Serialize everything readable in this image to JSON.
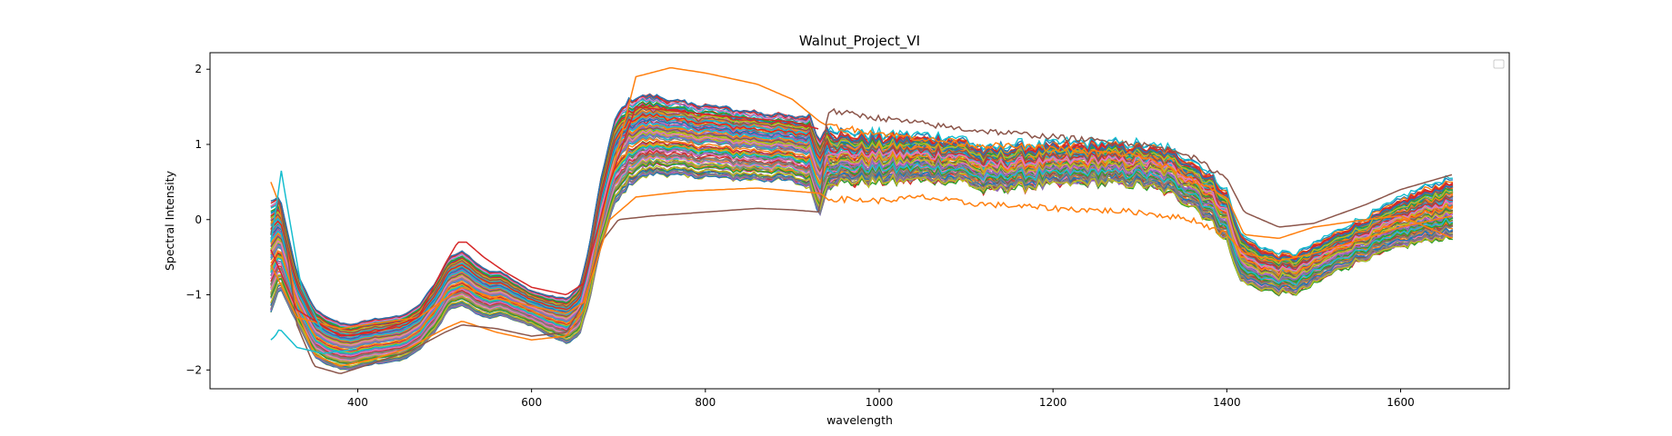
{
  "chart_data": {
    "type": "line",
    "title": "Walnut_Project_VI",
    "xlabel": "wavelength",
    "ylabel": "Spectral Intensity",
    "xlim": [
      230,
      1725
    ],
    "ylim": [
      -2.25,
      2.22
    ],
    "xticks": [
      400,
      600,
      800,
      1000,
      1200,
      1400,
      1600
    ],
    "yticks": [
      -2,
      -1,
      0,
      1,
      2
    ],
    "grid": false,
    "legend": "upper right (empty)",
    "series_count": 120,
    "palette": [
      "#1f77b4",
      "#ff7f0e",
      "#2ca02c",
      "#d62728",
      "#9467bd",
      "#8c564b",
      "#e377c2",
      "#7f7f7f",
      "#bcbd22",
      "#17becf"
    ],
    "mean_spectrum": {
      "x": [
        300,
        310,
        330,
        350,
        370,
        390,
        420,
        450,
        470,
        490,
        505,
        520,
        535,
        550,
        565,
        580,
        600,
        620,
        640,
        655,
        665,
        680,
        695,
        710,
        725,
        740,
        760,
        780,
        800,
        830,
        860,
        890,
        920,
        932,
        940,
        960,
        1000,
        1040,
        1080,
        1100,
        1120,
        1150,
        1200,
        1250,
        1300,
        1330,
        1360,
        1380,
        1400,
        1410,
        1420,
        1440,
        1460,
        1480,
        1500,
        1530,
        1560,
        1600,
        1630,
        1660
      ],
      "y": [
        -0.5,
        -0.3,
        -1.05,
        -1.5,
        -1.65,
        -1.7,
        -1.62,
        -1.58,
        -1.45,
        -1.15,
        -0.85,
        -0.78,
        -0.9,
        -1.0,
        -0.98,
        -1.08,
        -1.18,
        -1.28,
        -1.35,
        -1.22,
        -0.8,
        0.1,
        0.75,
        1.0,
        1.1,
        1.12,
        1.1,
        1.05,
        1.05,
        1.0,
        0.98,
        0.95,
        0.9,
        0.55,
        0.85,
        0.82,
        0.8,
        0.82,
        0.8,
        0.78,
        0.65,
        0.7,
        0.72,
        0.75,
        0.72,
        0.65,
        0.5,
        0.3,
        0.05,
        -0.35,
        -0.55,
        -0.65,
        -0.72,
        -0.72,
        -0.6,
        -0.4,
        -0.25,
        -0.05,
        0.08,
        0.15
      ]
    },
    "spread": {
      "x": [
        300,
        330,
        400,
        470,
        520,
        600,
        660,
        700,
        760,
        900,
        932,
        950,
        1100,
        1300,
        1400,
        1450,
        1550,
        1660
      ],
      "y": [
        0.45,
        0.2,
        0.18,
        0.18,
        0.22,
        0.14,
        0.2,
        0.35,
        0.3,
        0.26,
        0.3,
        0.2,
        0.17,
        0.16,
        0.2,
        0.16,
        0.16,
        0.24
      ]
    },
    "highlight_series": [
      {
        "color": "#ff7f0e",
        "x": [
          300,
          310,
          330,
          350,
          380,
          420,
          460,
          500,
          520,
          560,
          600,
          640,
          660,
          690,
          720,
          760,
          800,
          860,
          900,
          932,
          940,
          1000,
          1100,
          1200,
          1300,
          1350,
          1400,
          1420,
          1460,
          1500,
          1560,
          1600,
          1660
        ],
        "y": [
          0.5,
          0.2,
          -1.2,
          -1.8,
          -1.95,
          -1.85,
          -1.7,
          -1.45,
          -1.35,
          -1.5,
          -1.6,
          -1.55,
          -1.2,
          0.5,
          1.9,
          2.02,
          1.95,
          1.8,
          1.6,
          1.3,
          1.25,
          1.15,
          1.0,
          0.95,
          0.85,
          0.6,
          0.3,
          -0.2,
          -0.25,
          -0.1,
          0.0,
          0.05,
          -0.25
        ]
      },
      {
        "color": "#8c564b",
        "x": [
          300,
          310,
          330,
          350,
          380,
          420,
          460,
          500,
          520,
          560,
          600,
          640,
          660,
          680,
          700,
          740,
          800,
          860,
          900,
          932,
          940,
          1000,
          1100,
          1200,
          1300,
          1350,
          1400,
          1420,
          1460,
          1500,
          1560,
          1600,
          1660
        ],
        "y": [
          -0.2,
          0.3,
          -1.4,
          -1.95,
          -2.05,
          -1.9,
          -1.75,
          -1.5,
          -1.4,
          -1.45,
          -1.55,
          -1.5,
          -1.1,
          -0.3,
          0.0,
          0.05,
          0.1,
          0.15,
          0.13,
          0.1,
          1.45,
          1.35,
          1.2,
          1.1,
          1.0,
          0.9,
          0.55,
          0.1,
          -0.1,
          -0.05,
          0.2,
          0.4,
          0.6
        ]
      },
      {
        "color": "#ff7f0e",
        "x": [
          300,
          330,
          380,
          420,
          470,
          520,
          560,
          600,
          640,
          660,
          690,
          720,
          780,
          860,
          932,
          940,
          1000,
          1050,
          1100,
          1200,
          1300,
          1360,
          1400,
          1420,
          1460,
          1500,
          1560,
          1600,
          1660
        ],
        "y": [
          -0.6,
          -1.3,
          -1.45,
          -1.38,
          -1.3,
          -0.9,
          -1.05,
          -1.15,
          -1.25,
          -1.1,
          0.0,
          0.3,
          0.38,
          0.42,
          0.35,
          0.28,
          0.25,
          0.3,
          0.22,
          0.15,
          0.1,
          0.0,
          -0.2,
          -0.45,
          -0.55,
          -0.45,
          -0.25,
          -0.1,
          0.05
        ]
      },
      {
        "color": "#d62728",
        "x": [
          300,
          330,
          380,
          420,
          470,
          500,
          515,
          525,
          545,
          570,
          600,
          640,
          660,
          690,
          720,
          800,
          900,
          932
        ],
        "y": [
          -0.4,
          -1.2,
          -1.55,
          -1.5,
          -1.3,
          -0.6,
          -0.3,
          -0.3,
          -0.5,
          -0.7,
          -0.9,
          -1.0,
          -0.85,
          0.5,
          1.5,
          1.4,
          1.3,
          1.2
        ]
      },
      {
        "color": "#17becf",
        "x": [
          300,
          305,
          310,
          318,
          330,
          360,
          400
        ],
        "y": [
          -1.6,
          -1.55,
          -1.45,
          -1.55,
          -1.7,
          -1.78,
          -1.72
        ]
      },
      {
        "color": "#17becf",
        "x": [
          300,
          306,
          312,
          320,
          335,
          360
        ],
        "y": [
          -0.3,
          0.15,
          0.65,
          0.1,
          -0.9,
          -1.5
        ]
      }
    ]
  }
}
